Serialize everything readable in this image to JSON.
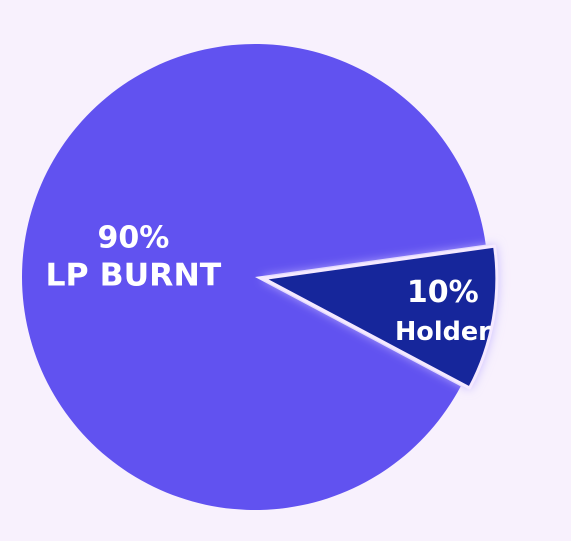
{
  "chart_data": {
    "type": "pie",
    "slices": [
      {
        "label": "LP BURNT",
        "percent_label": "90%",
        "value": 90,
        "color": "#6152f0"
      },
      {
        "label": "Holder",
        "percent_label": "10%",
        "value": 10,
        "color": "#16259b",
        "exploded": true
      }
    ],
    "edge_color": "#f5e9ff",
    "glow_color": "#c4b7ff",
    "start_angle_deg": -8,
    "direction": "clockwise"
  }
}
